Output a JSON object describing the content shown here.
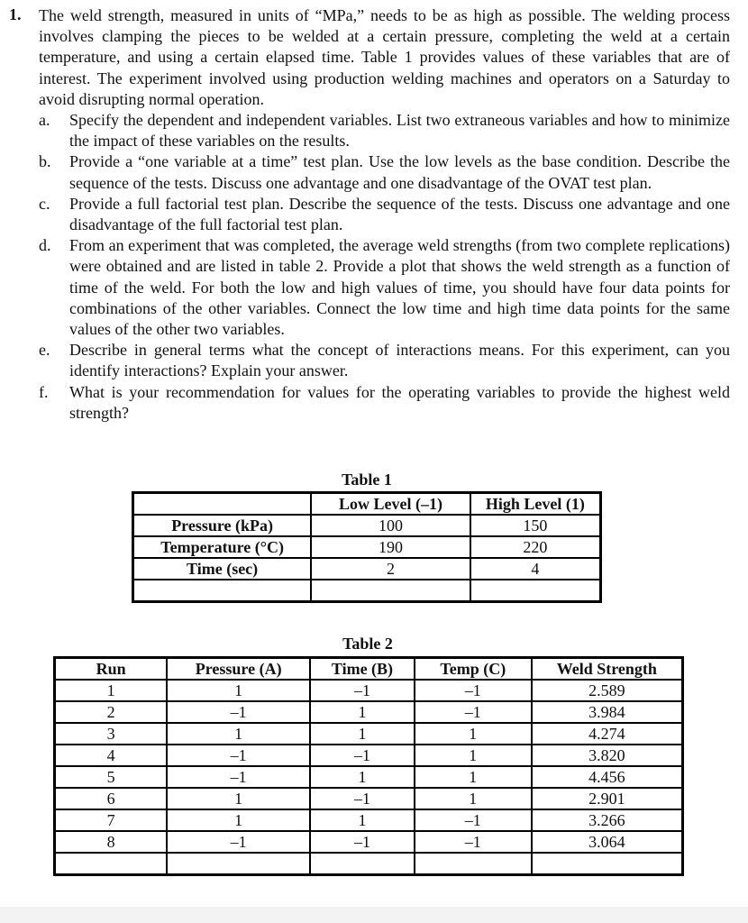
{
  "question": {
    "number": "1.",
    "text": "The weld strength, measured in units of “MPa,” needs to be as high as possible. The welding process involves clamping the pieces to be welded at a certain pressure, completing the weld at a certain temperature, and using a certain elapsed time. Table 1 provides values of these variables that are of interest. The experiment involved using production welding machines and operators on a Saturday to avoid disrupting normal operation.",
    "parts": [
      {
        "letter": "a.",
        "text": "Specify the dependent and independent variables. List two extraneous variables and how to minimize the impact of these variables on the results."
      },
      {
        "letter": "b.",
        "text": "Provide a “one variable at a time” test plan. Use the low levels as the base condition. Describe the sequence of the tests. Discuss one advantage and one disadvantage of the OVAT test plan."
      },
      {
        "letter": "c.",
        "text": "Provide a full factorial test plan. Describe the sequence of the tests. Discuss one advantage and one disadvantage of the full factorial test plan."
      },
      {
        "letter": "d.",
        "text": "From an experiment that was completed, the average weld strengths (from two complete replications) were obtained and are listed in table 2. Provide a plot that shows the weld strength as a function of time of the weld. For both the low and high values of time, you should have four data points for combinations of the other variables. Connect the low time and high time data points for the same values of the other two variables."
      },
      {
        "letter": "e.",
        "text": "Describe in general terms what the concept of interactions means. For this experiment, can you identify interactions? Explain your answer."
      },
      {
        "letter": "f.",
        "text": "What is your recommendation for values for the operating variables to provide the highest weld strength?"
      }
    ]
  },
  "table1": {
    "caption": "Table 1",
    "headers": [
      "",
      "Low Level (–1)",
      "High Level (1)"
    ],
    "rows": [
      [
        "Pressure (kPa)",
        "100",
        "150"
      ],
      [
        "Temperature (°C)",
        "190",
        "220"
      ],
      [
        "Time (sec)",
        "2",
        "4"
      ],
      [
        "",
        "",
        ""
      ]
    ]
  },
  "table2": {
    "caption": "Table 2",
    "headers": [
      "Run",
      "Pressure (A)",
      "Time (B)",
      "Temp (C)",
      "Weld Strength"
    ],
    "rows": [
      [
        "1",
        "1",
        "–1",
        "–1",
        "2.589"
      ],
      [
        "2",
        "–1",
        "1",
        "–1",
        "3.984"
      ],
      [
        "3",
        "1",
        "1",
        "1",
        "4.274"
      ],
      [
        "4",
        "–1",
        "–1",
        "1",
        "3.820"
      ],
      [
        "5",
        "–1",
        "1",
        "1",
        "4.456"
      ],
      [
        "6",
        "1",
        "–1",
        "1",
        "2.901"
      ],
      [
        "7",
        "1",
        "1",
        "–1",
        "3.266"
      ],
      [
        "8",
        "–1",
        "–1",
        "–1",
        "3.064"
      ],
      [
        "",
        "",
        "",
        "",
        ""
      ]
    ]
  }
}
